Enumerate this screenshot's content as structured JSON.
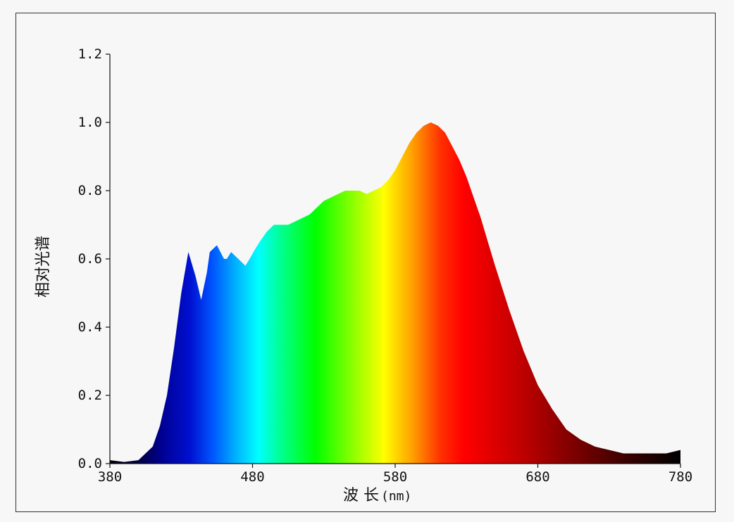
{
  "chart_data": {
    "type": "area",
    "xlabel": "波 长",
    "xlabel_unit": "(nm)",
    "ylabel": "相对光谱",
    "xlim": [
      380,
      780
    ],
    "ylim": [
      0,
      1.2
    ],
    "x_ticks": [
      "380",
      "480",
      "580",
      "680",
      "780"
    ],
    "y_ticks": [
      "0.0",
      "0.2",
      "0.4",
      "0.6",
      "0.8",
      "1.0",
      "1.2"
    ],
    "grid": false,
    "fill": "visible-spectrum rainbow gradient by wavelength",
    "series": [
      {
        "x": [
          380,
          390,
          400,
          410,
          415,
          420,
          425,
          430,
          435,
          440,
          444,
          448,
          450,
          455,
          460,
          462,
          465,
          470,
          475,
          478,
          482,
          485,
          490,
          495,
          500,
          505,
          510,
          520,
          525,
          530,
          540,
          545,
          550,
          555,
          560,
          565,
          570,
          575,
          580,
          585,
          590,
          595,
          600,
          605,
          610,
          615,
          620,
          625,
          630,
          635,
          640,
          645,
          650,
          660,
          670,
          680,
          690,
          700,
          710,
          720,
          730,
          740,
          750,
          760,
          770,
          780
        ],
        "y": [
          0.01,
          0.005,
          0.01,
          0.05,
          0.11,
          0.2,
          0.34,
          0.5,
          0.62,
          0.55,
          0.48,
          0.56,
          0.62,
          0.64,
          0.6,
          0.6,
          0.62,
          0.6,
          0.58,
          0.6,
          0.63,
          0.65,
          0.68,
          0.7,
          0.7,
          0.7,
          0.71,
          0.73,
          0.75,
          0.77,
          0.79,
          0.8,
          0.8,
          0.8,
          0.79,
          0.8,
          0.81,
          0.83,
          0.86,
          0.9,
          0.94,
          0.97,
          0.99,
          1.0,
          0.99,
          0.97,
          0.93,
          0.89,
          0.84,
          0.78,
          0.72,
          0.65,
          0.58,
          0.45,
          0.33,
          0.23,
          0.16,
          0.1,
          0.07,
          0.05,
          0.04,
          0.03,
          0.03,
          0.03,
          0.03,
          0.04
        ]
      }
    ]
  }
}
